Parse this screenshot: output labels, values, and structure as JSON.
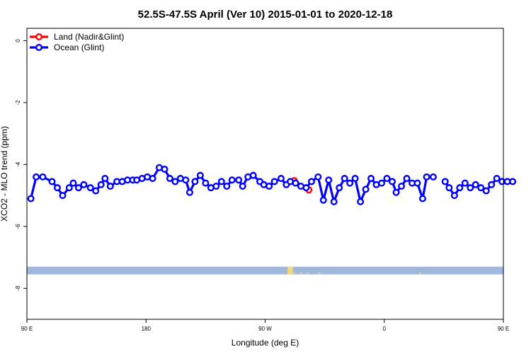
{
  "chart_data": {
    "type": "line",
    "title": "52.5S-47.5S April (Ver 10)   2015-01-01 to 2020-12-18",
    "xlabel": "Longitude (deg E)",
    "ylabel": "XCO2 - MLO trend (ppm)",
    "xlim": [
      90,
      450
    ],
    "ylim": [
      -9.0,
      0.4
    ],
    "x_ticks": [
      {
        "value": 90,
        "label": "90 E"
      },
      {
        "value": 180,
        "label": "180"
      },
      {
        "value": 270,
        "label": "90 W"
      },
      {
        "value": 360,
        "label": "0"
      },
      {
        "value": 450,
        "label": "90 E"
      },
      {
        "value": 540,
        "label": "180"
      }
    ],
    "y_ticks": [
      {
        "value": 0,
        "label": "0"
      },
      {
        "value": -2,
        "label": "-2"
      },
      {
        "value": -4,
        "label": "-4"
      },
      {
        "value": -6,
        "label": "-6"
      },
      {
        "value": -8,
        "label": "-8"
      }
    ],
    "legend_position": "top-left",
    "series": [
      {
        "name": "Land (Nadir&Glint)",
        "color": "#ff0000",
        "points": [
          [
            292,
            -4.52
          ],
          [
            303,
            -4.82
          ]
        ],
        "segments": [
          [
            0,
            1
          ]
        ]
      },
      {
        "name": "Ocean (Glint)",
        "color": "#0000ff",
        "points": [
          [
            93,
            -5.1
          ],
          [
            97,
            -4.4
          ],
          [
            102,
            -4.4
          ],
          [
            109,
            -4.55
          ],
          [
            113,
            -4.75
          ],
          [
            117,
            -5.0
          ],
          [
            122,
            -4.75
          ],
          [
            125,
            -4.6
          ],
          [
            129,
            -4.75
          ],
          [
            133,
            -4.65
          ],
          [
            138,
            -4.75
          ],
          [
            142,
            -4.85
          ],
          [
            146,
            -4.65
          ],
          [
            149,
            -4.45
          ],
          [
            153,
            -4.7
          ],
          [
            158,
            -4.55
          ],
          [
            162,
            -4.55
          ],
          [
            166,
            -4.5
          ],
          [
            170,
            -4.5
          ],
          [
            173,
            -4.5
          ],
          [
            177,
            -4.45
          ],
          [
            181,
            -4.4
          ],
          [
            185,
            -4.45
          ],
          [
            190,
            -4.1
          ],
          [
            194,
            -4.15
          ],
          [
            198,
            -4.45
          ],
          [
            202,
            -4.55
          ],
          [
            206,
            -4.45
          ],
          [
            210,
            -4.5
          ],
          [
            213,
            -4.9
          ],
          [
            217,
            -4.55
          ],
          [
            221,
            -4.35
          ],
          [
            225,
            -4.6
          ],
          [
            229,
            -4.75
          ],
          [
            233,
            -4.7
          ],
          [
            237,
            -4.55
          ],
          [
            241,
            -4.7
          ],
          [
            245,
            -4.5
          ],
          [
            250,
            -4.5
          ],
          [
            253,
            -4.7
          ],
          [
            257,
            -4.4
          ],
          [
            261,
            -4.35
          ],
          [
            266,
            -4.55
          ],
          [
            269,
            -4.65
          ],
          [
            273,
            -4.7
          ],
          [
            277,
            -4.55
          ],
          [
            282,
            -4.45
          ],
          [
            286,
            -4.65
          ],
          [
            289,
            -4.55
          ],
          [
            293,
            -4.6
          ],
          [
            297,
            -4.7
          ],
          [
            301,
            -4.75
          ],
          [
            305,
            -4.55
          ],
          [
            310,
            -4.4
          ],
          [
            314,
            -5.15
          ],
          [
            318,
            -4.5
          ],
          [
            322,
            -5.2
          ],
          [
            326,
            -4.75
          ],
          [
            330,
            -4.45
          ],
          [
            334,
            -4.6
          ],
          [
            338,
            -4.45
          ],
          [
            342,
            -5.2
          ],
          [
            346,
            -4.8
          ],
          [
            350,
            -4.45
          ],
          [
            354,
            -4.65
          ],
          [
            358,
            -4.6
          ],
          [
            362,
            -4.45
          ],
          [
            366,
            -4.55
          ],
          [
            369,
            -4.9
          ],
          [
            373,
            -4.7
          ],
          [
            377,
            -4.45
          ],
          [
            381,
            -4.6
          ],
          [
            385,
            -4.6
          ],
          [
            389,
            -5.1
          ],
          [
            392,
            -4.4
          ],
          [
            397,
            -4.4
          ],
          [
            406,
            -4.55
          ],
          [
            409,
            -4.75
          ],
          [
            413,
            -5.0
          ],
          [
            417,
            -4.75
          ],
          [
            421,
            -4.6
          ],
          [
            425,
            -4.75
          ],
          [
            429,
            -4.65
          ],
          [
            433,
            -4.75
          ],
          [
            437,
            -4.85
          ],
          [
            441,
            -4.65
          ],
          [
            445,
            -4.45
          ],
          [
            449,
            -4.55
          ],
          [
            453,
            -4.55
          ],
          [
            457,
            -4.55
          ]
        ],
        "segments": [
          [
            0,
            75
          ],
          [
            76,
            89
          ]
        ]
      }
    ],
    "strip": {
      "y_range": [
        -7.55,
        -7.3
      ],
      "ocean_color": "#a0b8dc",
      "land_color": "#f5d77a",
      "land_spans": [
        [
          287,
          291
        ]
      ],
      "land_dots": [
        292,
        297,
        302,
        311,
        387
      ]
    },
    "grid": false
  }
}
